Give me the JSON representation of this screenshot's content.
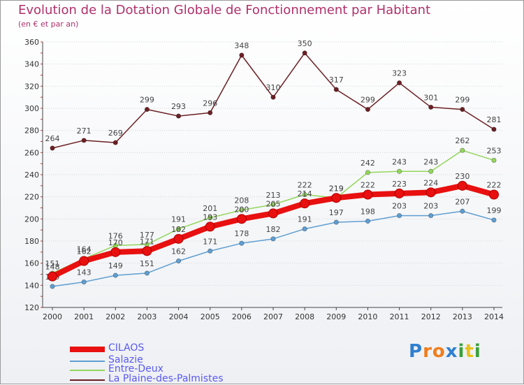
{
  "title": "Evolution de la Dotation Globale de Fonctionnement par Habitant",
  "subtitle": "(en € et par an)",
  "logo_text": "Proxiti",
  "chart_data": {
    "type": "line",
    "title": "Evolution de la Dotation Globale de Fonctionnement par Habitant",
    "subtitle": "(en € et par an)",
    "x": [
      "2000",
      "2001",
      "2002",
      "2003",
      "2004",
      "2005",
      "2006",
      "2007",
      "2008",
      "2009",
      "2010",
      "2011",
      "2012",
      "2013",
      "2014"
    ],
    "yticks": [
      120,
      140,
      160,
      180,
      200,
      220,
      240,
      260,
      280,
      300,
      320,
      340,
      360
    ],
    "ylim": [
      120,
      360
    ],
    "grid": "horizontal",
    "legend_position": "bottom-left",
    "series": [
      {
        "name": "CILAOS",
        "color": "#e81010",
        "values": [
          148,
          162,
          170,
          171,
          182,
          193,
          200,
          205,
          214,
          219,
          222,
          223,
          224,
          230,
          222
        ]
      },
      {
        "name": "Salazie",
        "color": "#5f9ed1",
        "values": [
          139,
          143,
          149,
          151,
          162,
          171,
          178,
          182,
          191,
          197,
          198,
          203,
          203,
          207,
          199
        ]
      },
      {
        "name": "Entre-Deux",
        "color": "#93d65c",
        "values": [
          151,
          164,
          176,
          177,
          191,
          201,
          208,
          213,
          222,
          219,
          242,
          243,
          243,
          262,
          253
        ]
      },
      {
        "name": "La Plaine-des-Palmistes",
        "color": "#6b1f24",
        "values": [
          264,
          271,
          269,
          299,
          293,
          296,
          348,
          310,
          350,
          317,
          299,
          323,
          301,
          299,
          281
        ]
      }
    ]
  }
}
